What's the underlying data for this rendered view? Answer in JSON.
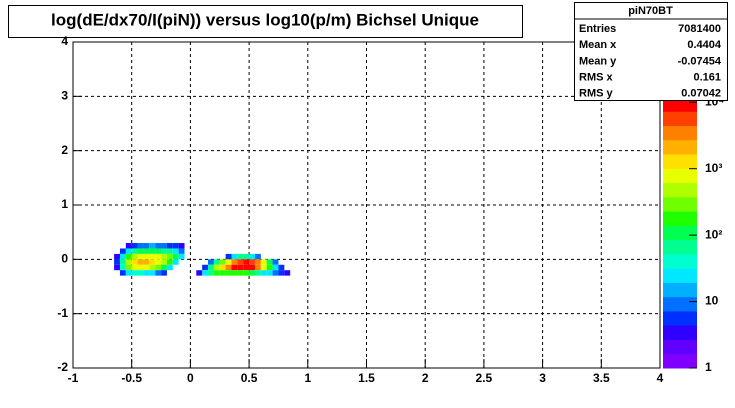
{
  "chart_data": {
    "type": "heatmap",
    "title": "log(dE/dx70/I(piN)) versus log10(p/m) Bichsel Unique",
    "x": [
      -0.625,
      -0.575,
      -0.525,
      -0.475,
      -0.425,
      -0.375,
      -0.325,
      -0.275,
      -0.225,
      -0.175,
      -0.125,
      -0.075,
      -0.025,
      0.025,
      0.075,
      0.125,
      0.175,
      0.225,
      0.275,
      0.325,
      0.375,
      0.425,
      0.475,
      0.525,
      0.575,
      0.625,
      0.675,
      0.725,
      0.775,
      0.825
    ],
    "y": [
      0.25,
      0.15,
      0.05,
      -0.05,
      -0.15,
      -0.25
    ],
    "z": [
      [
        null,
        null,
        3,
        5,
        8,
        10,
        12,
        10,
        8,
        6,
        5,
        3,
        null,
        null,
        null,
        null,
        null,
        null,
        null,
        null,
        null,
        null,
        null,
        null,
        null,
        null,
        null,
        null,
        null,
        null
      ],
      [
        null,
        5,
        20,
        60,
        100,
        120,
        110,
        100,
        80,
        60,
        30,
        10,
        null,
        null,
        null,
        null,
        null,
        null,
        null,
        null,
        null,
        null,
        null,
        null,
        null,
        null,
        null,
        null,
        null,
        null
      ],
      [
        3,
        30,
        200,
        600,
        900,
        1000,
        900,
        700,
        500,
        300,
        100,
        20,
        null,
        null,
        null,
        null,
        null,
        null,
        null,
        5,
        30,
        60,
        60,
        30,
        8,
        null,
        null,
        null,
        null,
        null
      ],
      [
        5,
        60,
        500,
        1500,
        2000,
        1800,
        1500,
        1000,
        600,
        200,
        30,
        null,
        null,
        null,
        null,
        null,
        10,
        60,
        300,
        1000,
        3000,
        6000,
        8000,
        6000,
        3000,
        800,
        100,
        10,
        null,
        null
      ],
      [
        4,
        40,
        300,
        800,
        900,
        800,
        600,
        300,
        100,
        20,
        null,
        null,
        null,
        null,
        null,
        5,
        60,
        400,
        1500,
        4000,
        8000,
        11000,
        12000,
        9000,
        4000,
        1000,
        200,
        30,
        5,
        null
      ],
      [
        null,
        5,
        30,
        40,
        40,
        30,
        20,
        10,
        5,
        null,
        null,
        null,
        null,
        null,
        3,
        20,
        80,
        150,
        200,
        200,
        200,
        180,
        150,
        100,
        60,
        30,
        20,
        10,
        5,
        3
      ]
    ],
    "xlim": [
      -1,
      4
    ],
    "xticks": [
      -1,
      -0.5,
      0,
      0.5,
      1,
      1.5,
      2,
      2.5,
      3,
      3.5,
      4
    ],
    "ylim": [
      -2,
      4
    ],
    "yticks": [
      -2,
      -1,
      0,
      1,
      2,
      3,
      4
    ],
    "zlim": [
      1,
      12000
    ],
    "zlog": true,
    "zticks": [
      1,
      10,
      {
        "value": 100,
        "label": "10²"
      },
      {
        "value": 1000,
        "label": "10³"
      },
      {
        "value": 10000,
        "label": "10⁴"
      }
    ],
    "grid": true,
    "palette": [
      "#8000ff",
      "#6000ff",
      "#3000ff",
      "#0030ff",
      "#0070ff",
      "#00b0ff",
      "#00e8ff",
      "#00ffd0",
      "#00ff90",
      "#00ff50",
      "#20ff00",
      "#70ff00",
      "#b0ff00",
      "#e8ff00",
      "#ffe000",
      "#ffb000",
      "#ff8000",
      "#ff4000",
      "#ff0000"
    ],
    "stats": {
      "title": "piN70BT",
      "rows": [
        {
          "label": "Entries",
          "value": 7081400
        },
        {
          "label": "Mean x",
          "value": 0.4404
        },
        {
          "label": "Mean y",
          "value": -0.07454
        },
        {
          "label": "RMS x",
          "value": 0.161
        },
        {
          "label": "RMS y",
          "value": 0.07042
        }
      ]
    }
  }
}
